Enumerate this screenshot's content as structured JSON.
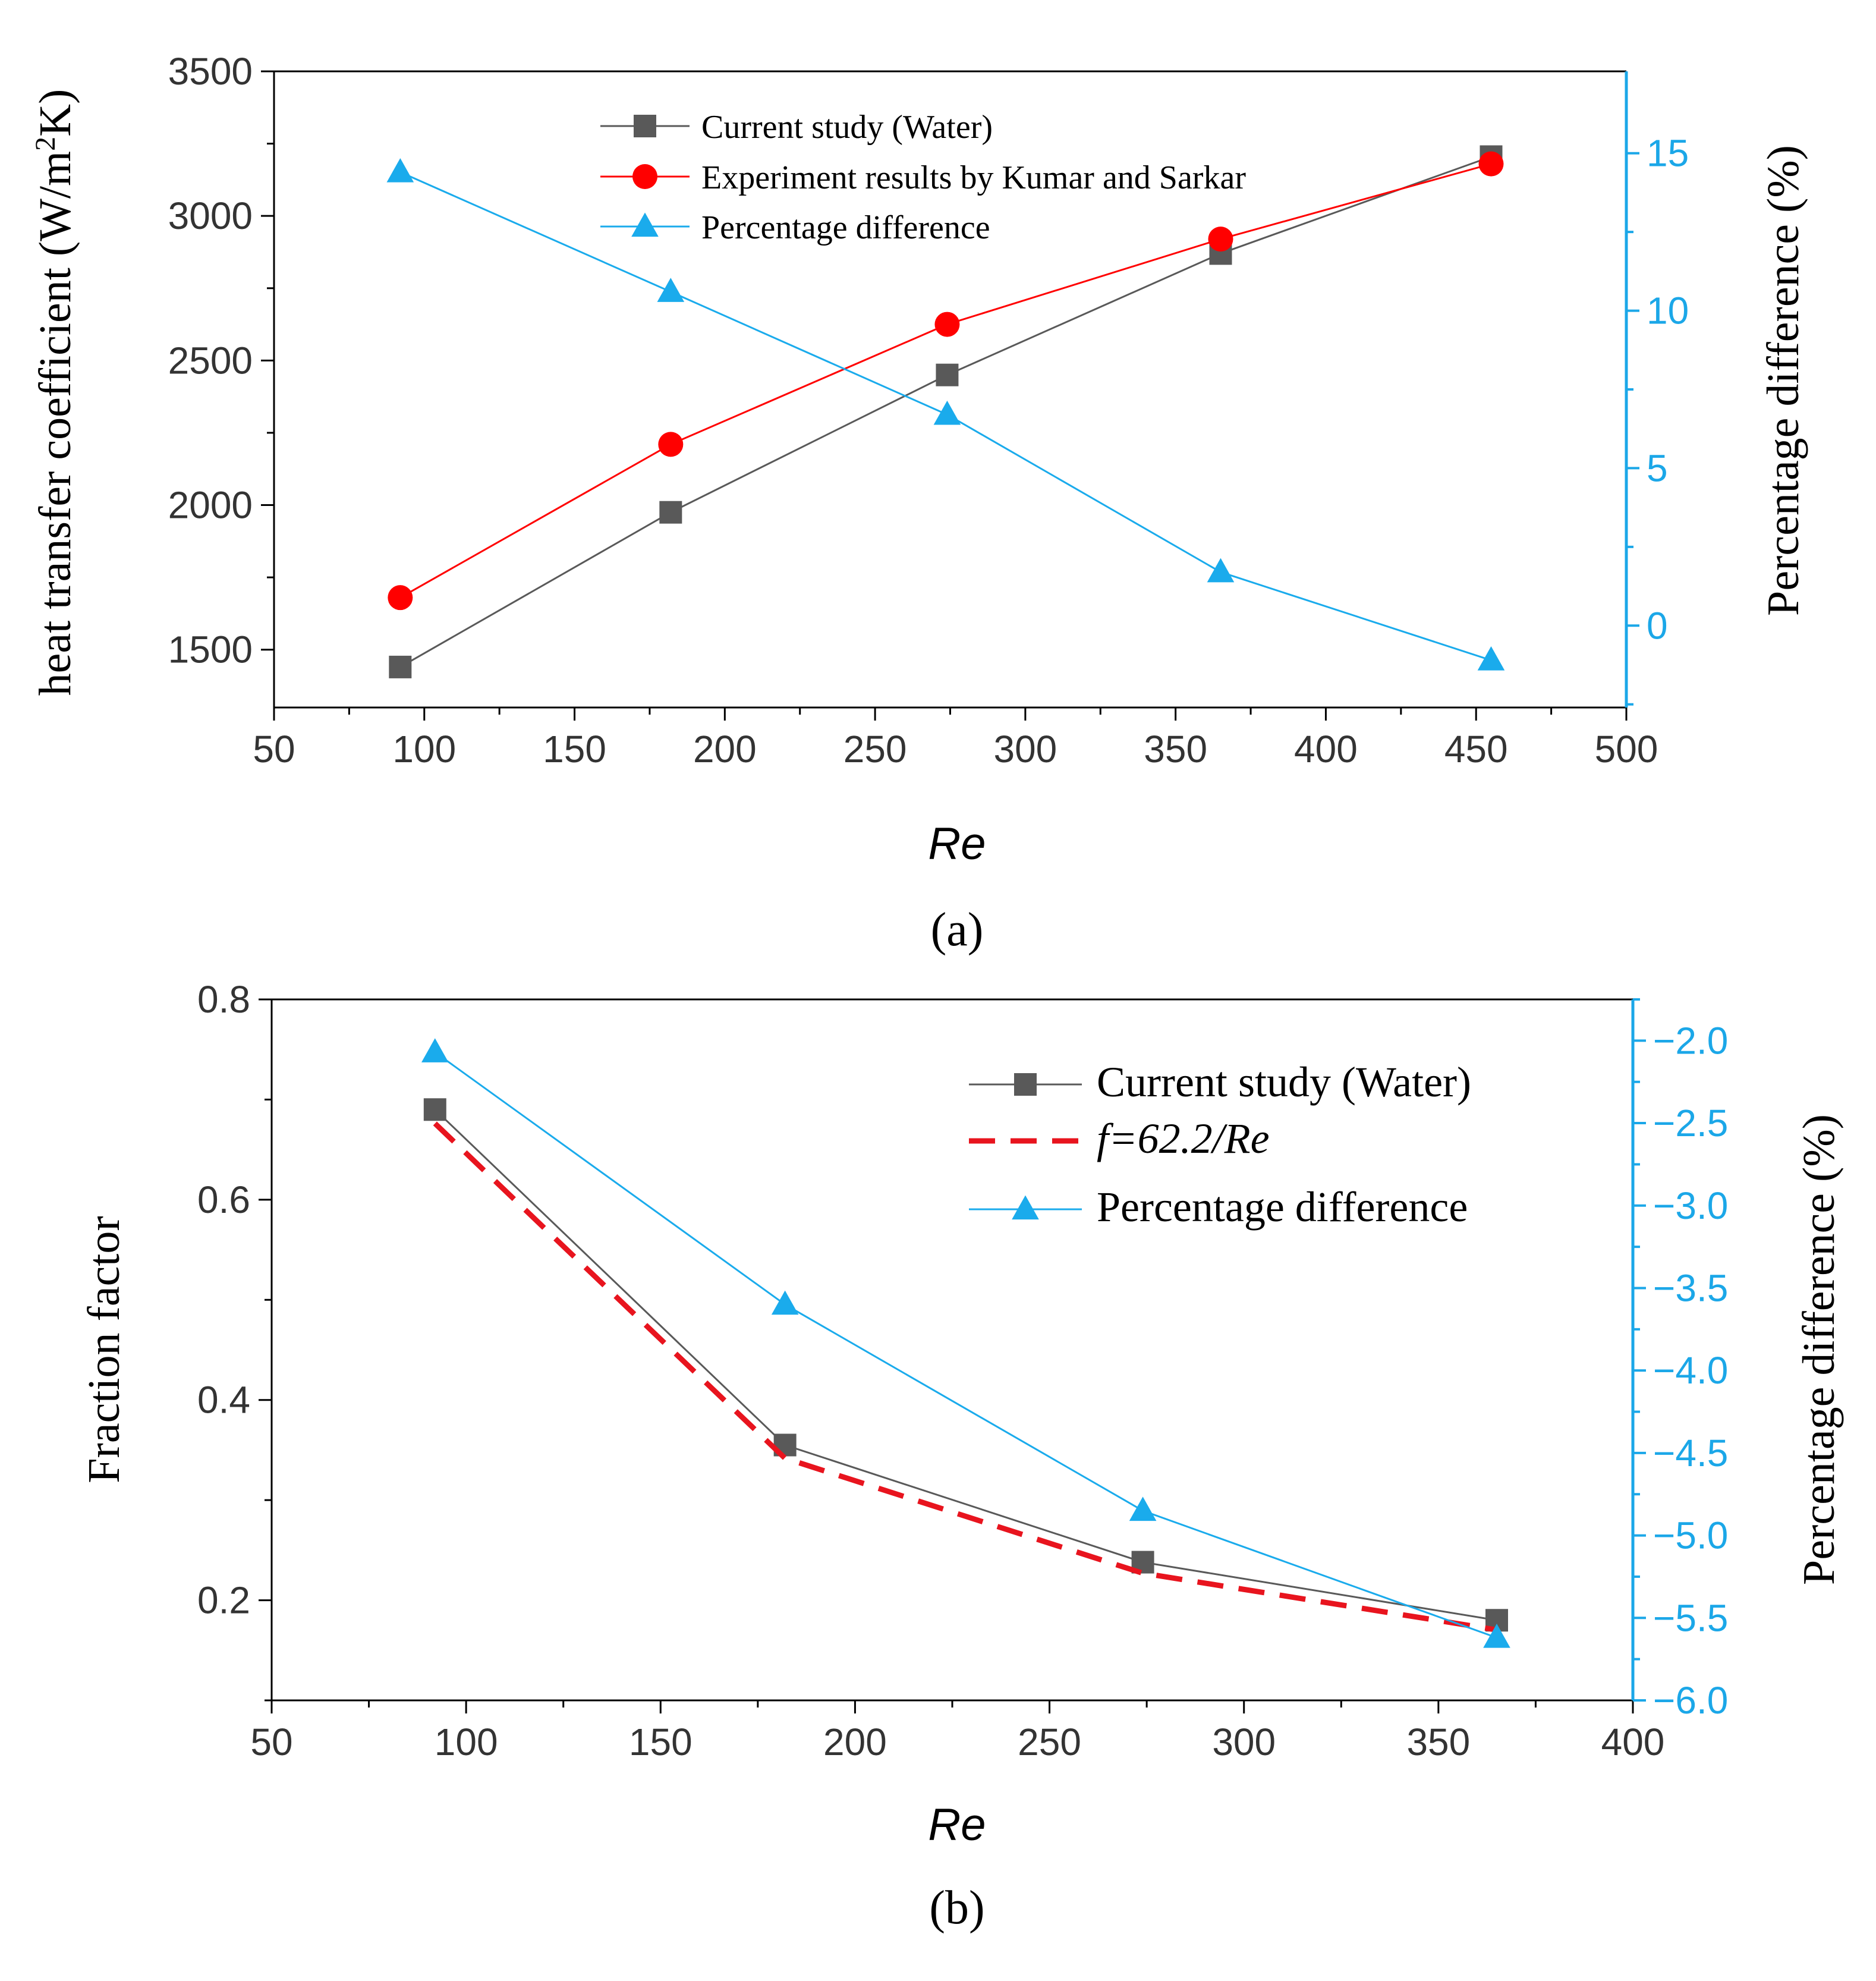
{
  "chart_data": [
    {
      "type": "line",
      "panel_label": "(a)",
      "xlabel": "Re",
      "ylabel": "heat transfer coefficient (W/m²K)",
      "ylabel_parts": [
        "heat transfer coefficient (W/m",
        "2",
        "K)"
      ],
      "y2label": "Percentage difference (%)",
      "xlim": [
        50,
        500
      ],
      "ylim": [
        1300,
        3500
      ],
      "y2lim": [
        -2.6,
        17.6
      ],
      "xticks": [
        50,
        100,
        150,
        200,
        250,
        300,
        350,
        400,
        450,
        500
      ],
      "yticks": [
        1500,
        2000,
        2500,
        3000,
        3500
      ],
      "y2ticks": [
        0,
        5,
        10,
        15
      ],
      "x": [
        92,
        182,
        274,
        365,
        455
      ],
      "series": [
        {
          "name": "Current study (Water)",
          "axis": "left",
          "marker": "square",
          "color": "#595959",
          "values": [
            1440,
            1975,
            2450,
            2870,
            3205
          ]
        },
        {
          "name": "Experiment results by Kumar and Sarkar",
          "axis": "left",
          "marker": "circle",
          "color": "#ff0000",
          "values": [
            1680,
            2210,
            2625,
            2920,
            3180
          ]
        },
        {
          "name": "Percentage difference",
          "axis": "right",
          "marker": "triangle",
          "color": "#1aabec",
          "values": [
            14.4,
            10.6,
            6.7,
            1.7,
            -1.1
          ]
        }
      ],
      "legend_position": "top-center"
    },
    {
      "type": "line",
      "panel_label": "(b)",
      "xlabel": "Re",
      "ylabel": "Fraction factor",
      "y2label": "Percentage difference (%)",
      "xlim": [
        50,
        400
      ],
      "ylim": [
        0.1,
        0.8
      ],
      "y2lim": [
        -6.0,
        -1.75
      ],
      "xticks": [
        50,
        100,
        150,
        200,
        250,
        300,
        350,
        400
      ],
      "yticks": [
        0.2,
        0.4,
        0.6,
        0.8
      ],
      "y2ticks": [
        -2.0,
        -2.5,
        -3.0,
        -3.5,
        -4.0,
        -4.5,
        -5.0,
        -5.5,
        -6.0
      ],
      "y2ticklabels": [
        "−2.0",
        "−2.5",
        "−3.0",
        "−3.5",
        "−4.0",
        "−4.5",
        "−5.0",
        "−5.5",
        "−6.0"
      ],
      "x": [
        92,
        182,
        274,
        365
      ],
      "series": [
        {
          "name": "Current study (Water)",
          "axis": "left",
          "marker": "square",
          "color": "#595959",
          "values": [
            0.69,
            0.355,
            0.238,
            0.18
          ]
        },
        {
          "name": "f=62.2/Re",
          "axis": "left",
          "marker": "none",
          "dashed": true,
          "color": "#e8141e",
          "values": [
            0.6761,
            0.3418,
            0.227,
            0.1704
          ]
        },
        {
          "name": "Percentage difference",
          "axis": "right",
          "marker": "triangle",
          "color": "#1aabec",
          "values": [
            -2.07,
            -3.6,
            -4.85,
            -5.62
          ]
        }
      ],
      "legend_position": "top-right"
    }
  ]
}
